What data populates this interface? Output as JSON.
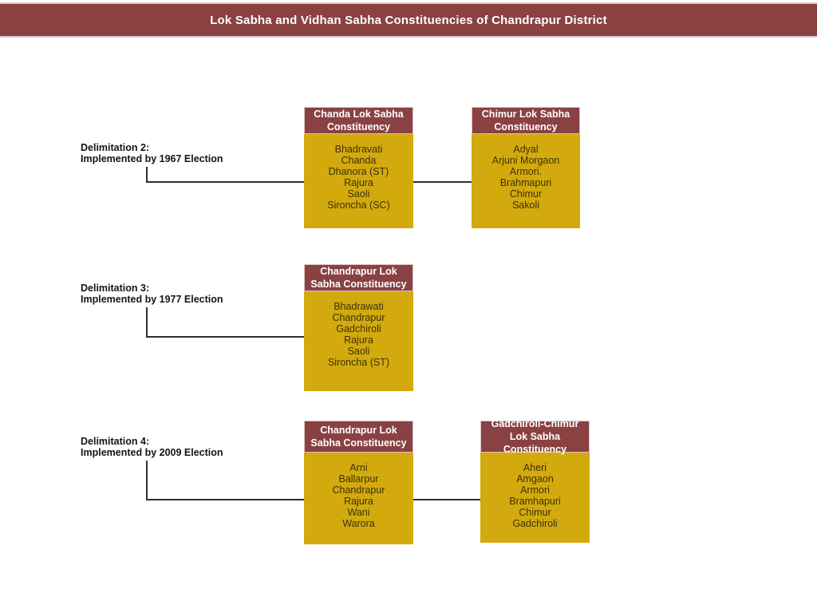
{
  "title": "Lok Sabha and Vidhan Sabha Constituencies of Chandrapur District",
  "colors": {
    "maroon": "#8A4142",
    "yellow": "#D3AA0D",
    "banner_border": "#D9C3C3",
    "connector": "#2F2F2F",
    "body_text": "#3B3108"
  },
  "groups": [
    {
      "label_line1": "Delimitation 2:",
      "label_line2": "Implemented by 1967 Election",
      "boxes": [
        {
          "header": "Chanda Lok Sabha Constituency",
          "items": [
            "Bhadravati",
            "Chanda",
            "Dhanora (ST)",
            "Rajura",
            "Saoli",
            "Sironcha (SC)"
          ]
        },
        {
          "header": "Chimur Lok Sabha Constituency",
          "items": [
            "Adyal",
            "Arjuni Morgaon",
            "Armori.",
            "Brahmapuri",
            "Chimur",
            "Sakoli"
          ]
        }
      ]
    },
    {
      "label_line1": "Delimitation 3:",
      "label_line2": "Implemented by 1977 Election",
      "boxes": [
        {
          "header": "Chandrapur Lok Sabha Constituency",
          "items": [
            "Bhadrawati",
            "Chandrapur",
            "Gadchiroli",
            "Rajura",
            "Saoli",
            "Sironcha (ST)"
          ]
        }
      ]
    },
    {
      "label_line1": "Delimitation 4:",
      "label_line2": "Implemented by 2009 Election",
      "boxes": [
        {
          "header": "Chandrapur Lok Sabha Constituency",
          "items": [
            "Arni",
            "Ballarpur",
            "Chandrapur",
            "Rajura",
            "Wani",
            "Warora"
          ]
        },
        {
          "header": "Gadchiroli-Chimur Lok Sabha Constituency",
          "items": [
            "Aheri",
            "Amgaon",
            "Armori",
            "Bramhapuri",
            "Chimur",
            "Gadchiroli"
          ]
        }
      ]
    }
  ]
}
